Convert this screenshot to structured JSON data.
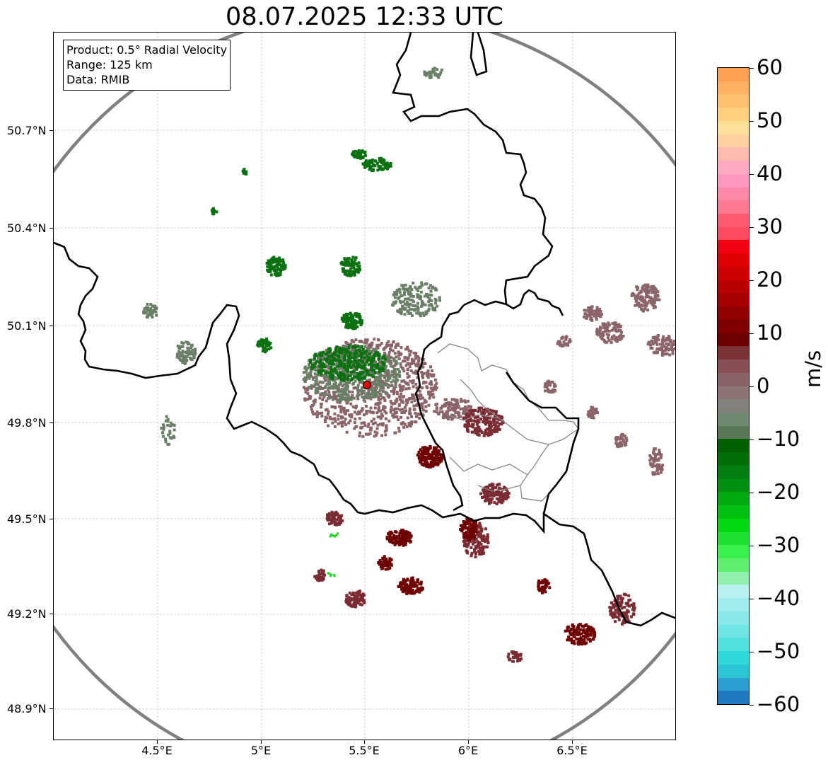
{
  "title": "08.07.2025 12:33 UTC",
  "info_box": {
    "product": "Product: 0.5° Radial Velocity",
    "range": "Range: 125 km",
    "data": "Data: RMIB"
  },
  "map": {
    "lat_ticks": [
      "50.7°N",
      "50.4°N",
      "50.1°N",
      "49.8°N",
      "49.5°N",
      "49.2°N",
      "48.9°N"
    ],
    "lon_ticks": [
      "4.5°E",
      "5°E",
      "5.5°E",
      "6°E",
      "6.5°E"
    ],
    "radar_site": {
      "lon": 5.5,
      "lat": 49.91,
      "color": "#e00000"
    },
    "range_ring_color": "#808080",
    "border_color": "#000000",
    "admin_border_color": "#888888"
  },
  "colorbar": {
    "unit": "m/s",
    "tick_labels": [
      "60",
      "50",
      "40",
      "30",
      "20",
      "10",
      "0",
      "−10",
      "−20",
      "−30",
      "−40",
      "−50",
      "−60"
    ],
    "min": -60,
    "max": 60,
    "colors": [
      "#1f78c0",
      "#2a9ed0",
      "#2bc5d5",
      "#30d8dc",
      "#50e0e0",
      "#6ee4e4",
      "#8ae8e8",
      "#a0ecec",
      "#b8f0f0",
      "#90f0b0",
      "#60f070",
      "#3af04a",
      "#1ee030",
      "#00d810",
      "#00c010",
      "#00aa10",
      "#009010",
      "#007e10",
      "#006d08",
      "#006000",
      "#5a7858",
      "#6f8a70",
      "#84807c",
      "#8c7474",
      "#8a6368",
      "#874f55",
      "#7a3236",
      "#700000",
      "#800000",
      "#920000",
      "#a60000",
      "#b80000",
      "#cc0000",
      "#de0000",
      "#f00010",
      "#ff4a60",
      "#ff5a70",
      "#ff7890",
      "#ff88a8",
      "#ff98c0",
      "#ffaac0",
      "#ffbab0",
      "#ffd0a0",
      "#ffe098",
      "#ffd080",
      "#ffc070",
      "#ffb060",
      "#ffa050"
    ]
  },
  "echo_colors": {
    "outbound_dark": "#6e0000",
    "outbound_mid": "#7a2c32",
    "mauve": "#8a6468",
    "gray_green": "#6a8066",
    "green": "#0a7010",
    "bright_green": "#20d820"
  }
}
